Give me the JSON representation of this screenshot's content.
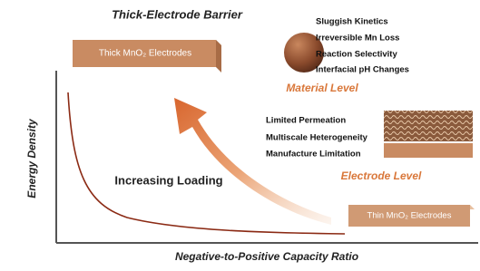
{
  "title": "Thick-Electrode Barrier",
  "thick_electrode": {
    "label": "Thick MnO₂ Electrodes"
  },
  "thin_electrode": {
    "label": "Thin MnO₂ Electrodes"
  },
  "material_level": {
    "label": "Material Level",
    "items": [
      "Sluggish Kinetics",
      "Irreversible Mn Loss",
      "Reaction Selectivity",
      "Interfacial pH Changes"
    ]
  },
  "electrode_level": {
    "label": "Electrode Level",
    "items": [
      "Limited Permeation",
      "Multiscale Heterogeneity",
      "Manufacture Limitation"
    ]
  },
  "arrow_label": "Increasing Loading",
  "axes": {
    "y_label": "Energy Density",
    "x_label": "Negative-to-Positive Capacity Ratio"
  }
}
